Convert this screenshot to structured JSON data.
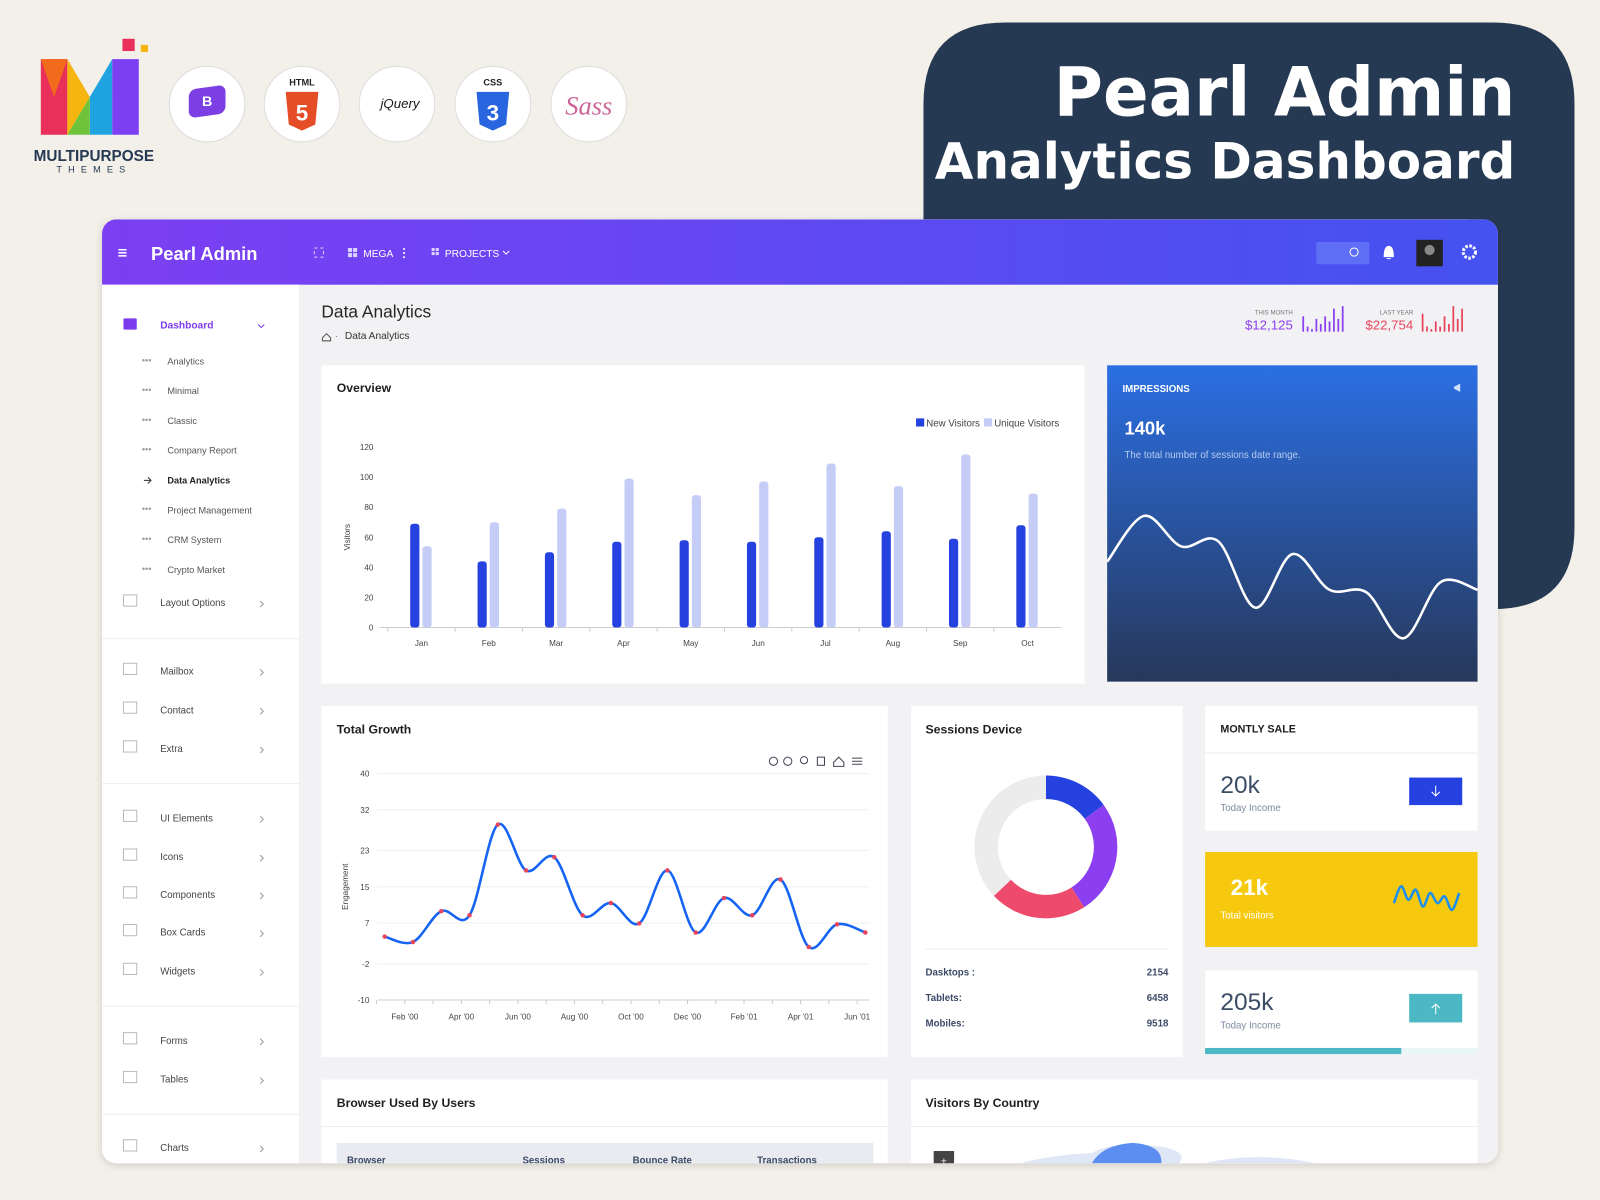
{
  "brand": {
    "logo_line1": "MULTIPURPOSE",
    "logo_line2": "THEMES",
    "badges": [
      "HTML",
      "5",
      "jQuery",
      "CSS",
      "3",
      "Sass"
    ]
  },
  "hero": {
    "title": "Pearl  Admin",
    "subtitle": "Analytics Dashboard"
  },
  "topbar": {
    "app_name": "Pearl Admin",
    "menu": [
      "MEGA",
      "PROJECTS"
    ]
  },
  "sidebar": {
    "active": "Dashboard",
    "submenu": [
      "Analytics",
      "Minimal",
      "Classic",
      "Company Report",
      "Data Analytics",
      "Project Management",
      "CRM System",
      "Crypto Market"
    ],
    "items": [
      "Layout Options",
      "Mailbox",
      "Contact",
      "Extra",
      "UI Elements",
      "Icons",
      "Components",
      "Box Cards",
      "Widgets",
      "Forms",
      "Tables",
      "Charts"
    ]
  },
  "page": {
    "title": "Data Analytics",
    "breadcrumb": "Data Analytics"
  },
  "stats": [
    {
      "label": "THIS MONTH",
      "value": "$12,125"
    },
    {
      "label": "LAST YEAR",
      "value": "$22,754"
    }
  ],
  "impressions": {
    "value": "140k",
    "description": "The total number of sessions date range."
  },
  "sessions": {
    "rows": [
      {
        "label": "Dasktops :",
        "value": 2154
      },
      {
        "label": "Tablets:",
        "value": 6458
      },
      {
        "label": "Mobiles:",
        "value": 9518
      }
    ]
  },
  "monthly_sale": {
    "title": "MONTLY SALE",
    "cards": [
      {
        "value": "20k",
        "label": "Today Income"
      },
      {
        "value": "21k",
        "label": "Total visitors"
      },
      {
        "value": "205k",
        "label": "Today Income",
        "progress": 72
      }
    ]
  },
  "browser_table": {
    "title": "Browser Used By Users",
    "columns": [
      "Browser",
      "Sessions",
      "Bounce Rate",
      "Transactions"
    ]
  },
  "visitors_country": {
    "title": "Visitors By Country"
  },
  "chart_data": [
    {
      "type": "bar",
      "title": "Overview",
      "y_label": "Visitors",
      "categories": [
        "Jan",
        "Feb",
        "Mar",
        "Apr",
        "May",
        "Jun",
        "Jul",
        "Aug",
        "Sep",
        "Oct"
      ],
      "series": [
        {
          "name": "New Visitors",
          "color": "#2541e0",
          "values": [
            69,
            44,
            50,
            57,
            58,
            57,
            60,
            64,
            59,
            68
          ]
        },
        {
          "name": "Unique Visitors",
          "color": "#c5cdf7",
          "values": [
            54,
            70,
            79,
            99,
            88,
            97,
            109,
            94,
            115,
            89
          ]
        }
      ],
      "ylim": [
        0,
        120
      ],
      "yticks": [
        0,
        20,
        40,
        60,
        80,
        100,
        120
      ],
      "grid": false,
      "legend": "top-right"
    },
    {
      "type": "line",
      "title": "Total Growth",
      "y_label": "Engagement",
      "categories": [
        null,
        "Feb '00",
        null,
        "Apr '00",
        null,
        "Jun '00",
        null,
        "Aug '00",
        null,
        "Oct '00",
        null,
        "Dec '00",
        null,
        "Feb '01",
        null,
        "Apr '01",
        null,
        "Jun '01"
      ],
      "series": [
        {
          "color": "#1463f3",
          "marker_color": "#e8455c",
          "values": [
            4.0,
            2.8,
            9.6,
            8.7,
            28.7,
            18.6,
            21.5,
            8.7,
            11.4,
            6.9,
            18.6,
            4.9,
            12.5,
            8.7,
            16.6,
            1.7,
            6.7,
            4.9
          ]
        }
      ],
      "ylim": [
        -10,
        40
      ],
      "yticks": [
        -10,
        -2,
        7,
        15,
        23,
        32,
        40
      ],
      "grid": true
    },
    {
      "type": "line",
      "title": "IMPRESSIONS",
      "color": "#ffffff",
      "values": [
        47,
        65,
        53,
        55,
        29,
        50,
        36,
        35,
        17,
        39,
        36
      ],
      "ylim": [
        0,
        100
      ]
    },
    {
      "type": "pie",
      "title": "Sessions Device",
      "values": [
        15,
        26,
        22,
        37
      ],
      "colors": [
        "#2541e0",
        "#8b3ff0",
        "#ee4b6c",
        "#ececec"
      ]
    },
    {
      "type": "line",
      "color": "#1b8ff0",
      "values": [
        3,
        8,
        4,
        7,
        2,
        6,
        3,
        5,
        1,
        6
      ],
      "ylim": [
        0,
        10
      ]
    },
    {
      "type": "bar",
      "color": "#8b3ff0",
      "values": [
        6,
        2,
        1,
        5,
        3,
        6,
        4,
        9,
        5,
        10
      ],
      "ylim": [
        0,
        10
      ]
    },
    {
      "type": "bar",
      "color": "#e8445a",
      "values": [
        7,
        2,
        1,
        4,
        2,
        6,
        3,
        10,
        5,
        9
      ],
      "ylim": [
        0,
        10
      ]
    }
  ]
}
